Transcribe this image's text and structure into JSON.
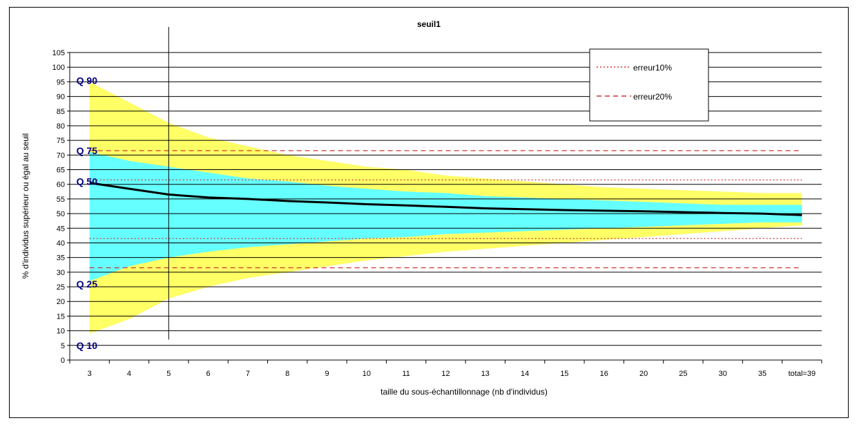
{
  "chart_data": {
    "type": "area",
    "title": "seuil1",
    "xlabel": "taille du sous-échantillonnage (nb d'individus)",
    "ylabel": "% d'individus supérieur ou égal au seuil",
    "categories": [
      "3",
      "4",
      "5",
      "6",
      "7",
      "8",
      "9",
      "10",
      "11",
      "12",
      "13",
      "14",
      "15",
      "16",
      "20",
      "25",
      "30",
      "35",
      "total=39"
    ],
    "ylim": [
      0,
      105
    ],
    "ytick_step": 5,
    "grid": true,
    "legend_position": "top-right",
    "series": [
      {
        "name": "Q 90",
        "values": [
          95,
          88,
          81,
          76,
          73,
          70,
          68,
          66,
          65,
          63,
          62,
          61,
          60,
          59,
          58.5,
          58,
          57.5,
          57,
          57
        ]
      },
      {
        "name": "Q 75",
        "values": [
          71,
          68,
          66,
          64,
          62,
          61,
          59.5,
          58.5,
          57.5,
          57,
          56,
          55.5,
          55,
          54.5,
          54,
          53.5,
          53,
          53,
          53
        ]
      },
      {
        "name": "Q 50",
        "values": [
          60.5,
          58.5,
          56.5,
          55.5,
          55,
          54.3,
          53.8,
          53.2,
          52.8,
          52.3,
          51.8,
          51.5,
          51.2,
          51,
          50.8,
          50.5,
          50.2,
          50,
          49.5
        ]
      },
      {
        "name": "Q 25",
        "values": [
          27,
          32,
          35,
          37,
          38.5,
          39.5,
          40.5,
          41.5,
          42,
          43,
          43.5,
          44,
          44.5,
          45,
          45.5,
          46,
          46.5,
          47,
          47
        ]
      },
      {
        "name": "Q 10",
        "values": [
          9,
          14,
          21,
          25,
          28,
          30,
          32,
          34,
          35.5,
          37,
          38,
          39,
          40,
          41,
          42,
          43,
          44,
          45,
          46
        ]
      }
    ],
    "reference_lines": [
      {
        "name": "erreur10%",
        "style": "dotted",
        "color": "#cc3333",
        "values": [
          61.5,
          41.5
        ]
      },
      {
        "name": "erreur20%",
        "style": "dashed",
        "color": "#cc3333",
        "values": [
          71.5,
          31.5
        ]
      }
    ],
    "vertical_marker": {
      "category": "5"
    },
    "colors": {
      "outer_band": "#ffff66",
      "inner_band": "#66ffff",
      "median": "#000000",
      "quantile_label": "#000080"
    },
    "quantile_labels": [
      "Q 90",
      "Q 75",
      "Q 50",
      "Q 25",
      "Q 10"
    ]
  }
}
